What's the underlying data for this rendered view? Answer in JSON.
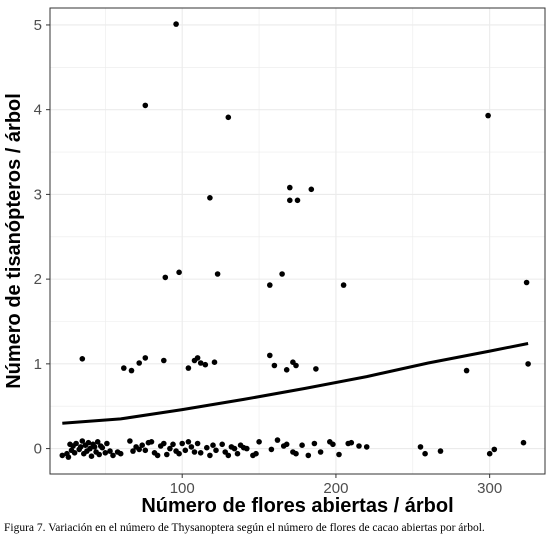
{
  "chart_data": {
    "type": "scatter",
    "xlabel": "Número de flores abiertas / árbol",
    "ylabel": "Número de tisanópteros / árbol",
    "xlim": [
      14,
      336
    ],
    "ylim": [
      -0.3,
      5.2
    ],
    "x_ticks": [
      100,
      200,
      300
    ],
    "x_tick_labels": [
      "100",
      "200",
      "300"
    ],
    "y_ticks": [
      0,
      1,
      2,
      3,
      4,
      5
    ],
    "y_tick_labels": [
      "0",
      "1",
      "2",
      "3",
      "4",
      "5"
    ],
    "grid": true,
    "legend": "none",
    "colors": {
      "panel_border": "#333333",
      "grid": "#ebebeb",
      "points": "#000000",
      "trend": "#000000"
    },
    "points": [
      [
        22,
        -0.08
      ],
      [
        25,
        -0.06
      ],
      [
        26,
        -0.1
      ],
      [
        27,
        0.05
      ],
      [
        28,
        -0.02
      ],
      [
        29,
        0.03
      ],
      [
        30,
        -0.05
      ],
      [
        31,
        0.06
      ],
      [
        33,
        -0.01
      ],
      [
        34,
        0.02
      ],
      [
        35,
        0.09
      ],
      [
        36,
        -0.06
      ],
      [
        37,
        0.04
      ],
      [
        38,
        -0.03
      ],
      [
        39,
        0.07
      ],
      [
        40,
        0.0
      ],
      [
        41,
        -0.09
      ],
      [
        42,
        0.05
      ],
      [
        43,
        0.02
      ],
      [
        44,
        -0.04
      ],
      [
        45,
        0.08
      ],
      [
        46,
        -0.07
      ],
      [
        47,
        0.03
      ],
      [
        48,
        0.01
      ],
      [
        50,
        -0.05
      ],
      [
        51,
        0.06
      ],
      [
        53,
        -0.03
      ],
      [
        55,
        -0.08
      ],
      [
        58,
        -0.04
      ],
      [
        60,
        -0.06
      ],
      [
        66,
        0.09
      ],
      [
        68,
        -0.03
      ],
      [
        70,
        0.02
      ],
      [
        72,
        -0.01
      ],
      [
        74,
        0.04
      ],
      [
        76,
        -0.02
      ],
      [
        78,
        0.07
      ],
      [
        80,
        0.08
      ],
      [
        82,
        -0.05
      ],
      [
        84,
        -0.08
      ],
      [
        86,
        0.03
      ],
      [
        88,
        0.06
      ],
      [
        90,
        -0.07
      ],
      [
        92,
        0.0
      ],
      [
        94,
        0.05
      ],
      [
        96,
        -0.03
      ],
      [
        98,
        -0.06
      ],
      [
        100,
        0.06
      ],
      [
        102,
        -0.02
      ],
      [
        104,
        0.08
      ],
      [
        106,
        0.02
      ],
      [
        108,
        -0.04
      ],
      [
        110,
        0.06
      ],
      [
        112,
        -0.05
      ],
      [
        116,
        0.01
      ],
      [
        118,
        -0.08
      ],
      [
        120,
        0.04
      ],
      [
        122,
        -0.02
      ],
      [
        126,
        0.05
      ],
      [
        128,
        -0.04
      ],
      [
        130,
        -0.08
      ],
      [
        132,
        0.02
      ],
      [
        134,
        0.0
      ],
      [
        136,
        -0.06
      ],
      [
        138,
        0.04
      ],
      [
        140,
        0.01
      ],
      [
        142,
        0.0
      ],
      [
        146,
        -0.08
      ],
      [
        148,
        -0.06
      ],
      [
        150,
        0.08
      ],
      [
        158,
        -0.01
      ],
      [
        162,
        0.1
      ],
      [
        166,
        0.03
      ],
      [
        168,
        0.05
      ],
      [
        172,
        -0.04
      ],
      [
        174,
        -0.06
      ],
      [
        178,
        0.04
      ],
      [
        182,
        -0.08
      ],
      [
        186,
        0.06
      ],
      [
        190,
        -0.04
      ],
      [
        196,
        0.08
      ],
      [
        198,
        0.05
      ],
      [
        202,
        -0.07
      ],
      [
        208,
        0.06
      ],
      [
        210,
        0.07
      ],
      [
        215,
        0.03
      ],
      [
        220,
        0.02
      ],
      [
        255,
        0.02
      ],
      [
        258,
        -0.06
      ],
      [
        268,
        -0.03
      ],
      [
        300,
        -0.06
      ],
      [
        303,
        -0.01
      ],
      [
        322,
        0.07
      ],
      [
        35,
        1.06
      ],
      [
        62,
        0.95
      ],
      [
        67,
        0.92
      ],
      [
        72,
        1.01
      ],
      [
        76,
        1.07
      ],
      [
        88,
        1.04
      ],
      [
        104,
        0.95
      ],
      [
        108,
        1.04
      ],
      [
        110,
        1.07
      ],
      [
        112,
        1.01
      ],
      [
        115,
        0.99
      ],
      [
        121,
        1.02
      ],
      [
        157,
        1.1
      ],
      [
        160,
        0.98
      ],
      [
        168,
        0.93
      ],
      [
        172,
        1.02
      ],
      [
        174,
        0.98
      ],
      [
        187,
        0.94
      ],
      [
        285,
        0.92
      ],
      [
        325,
        1.0
      ],
      [
        89,
        2.02
      ],
      [
        98,
        2.08
      ],
      [
        123,
        2.06
      ],
      [
        157,
        1.93
      ],
      [
        165,
        2.06
      ],
      [
        205,
        1.93
      ],
      [
        324,
        1.96
      ],
      [
        118,
        2.96
      ],
      [
        170,
        3.08
      ],
      [
        170,
        2.93
      ],
      [
        175,
        2.93
      ],
      [
        184,
        3.06
      ],
      [
        76,
        4.05
      ],
      [
        130,
        3.91
      ],
      [
        299,
        3.93
      ],
      [
        96,
        5.01
      ]
    ],
    "trend_line": [
      [
        22,
        0.3
      ],
      [
        60,
        0.35
      ],
      [
        100,
        0.46
      ],
      [
        140,
        0.58
      ],
      [
        180,
        0.71
      ],
      [
        220,
        0.85
      ],
      [
        260,
        1.01
      ],
      [
        300,
        1.15
      ],
      [
        325,
        1.24
      ]
    ]
  },
  "caption": "Figura 7. Variación en el número de Thysanoptera según el número de flores de cacao abiertas por árbol."
}
